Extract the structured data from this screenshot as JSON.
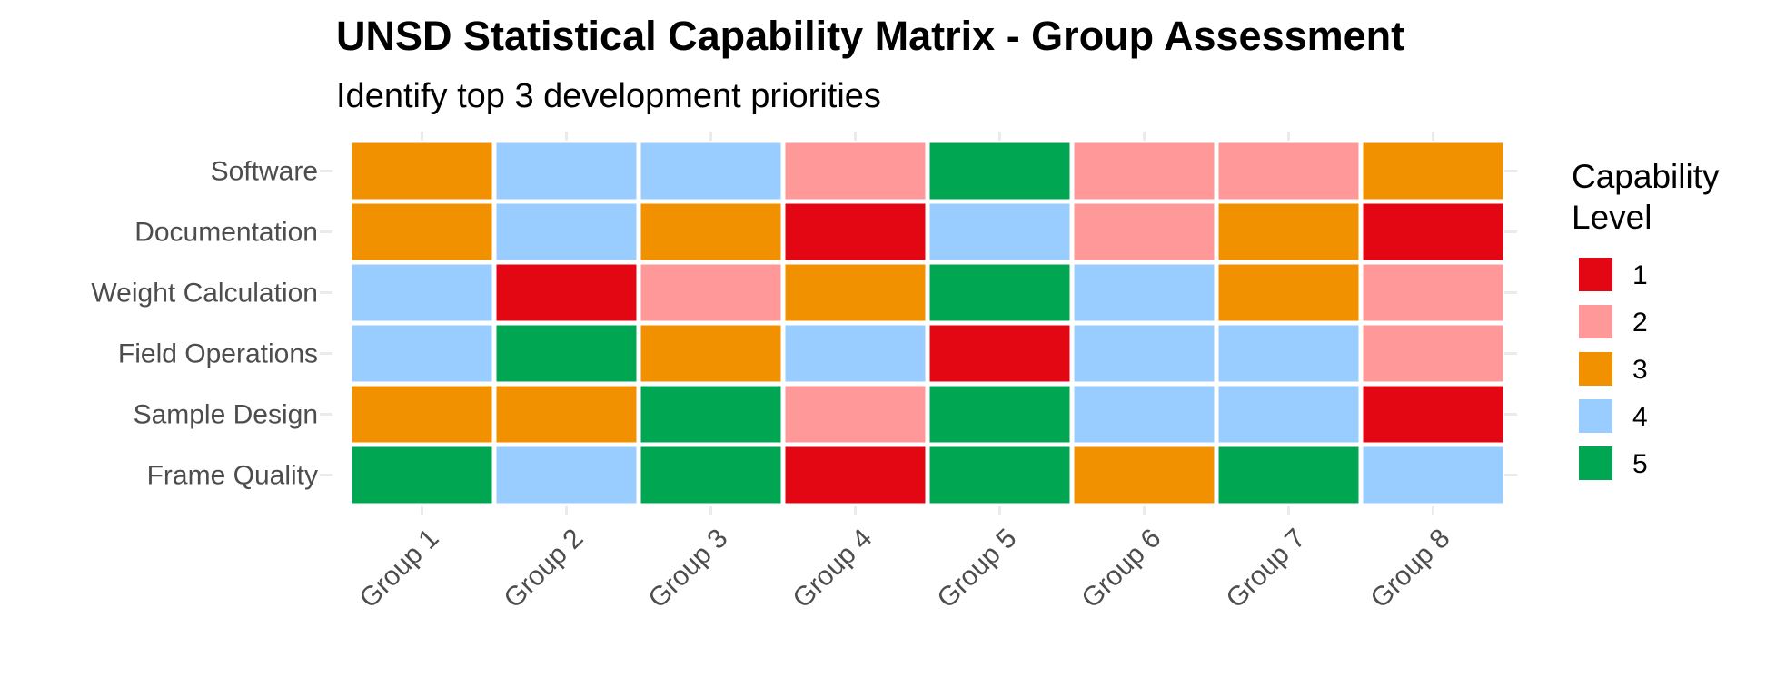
{
  "chart_data": {
    "type": "heatmap",
    "title": "UNSD Statistical Capability Matrix - Group Assessment",
    "subtitle": "Identify top 3 development priorities",
    "xlabel": "",
    "ylabel": "",
    "x_categories": [
      "Group 1",
      "Group 2",
      "Group 3",
      "Group 4",
      "Group 5",
      "Group 6",
      "Group 7",
      "Group 8"
    ],
    "y_categories": [
      "Software",
      "Documentation",
      "Weight Calculation",
      "Field Operations",
      "Sample Design",
      "Frame Quality"
    ],
    "values": [
      [
        3,
        4,
        4,
        2,
        5,
        2,
        2,
        3
      ],
      [
        3,
        4,
        3,
        1,
        4,
        2,
        3,
        1
      ],
      [
        4,
        1,
        2,
        3,
        5,
        4,
        3,
        2
      ],
      [
        4,
        5,
        3,
        4,
        1,
        4,
        4,
        2
      ],
      [
        3,
        3,
        5,
        2,
        5,
        4,
        4,
        1
      ],
      [
        5,
        4,
        5,
        1,
        5,
        3,
        5,
        4
      ]
    ],
    "legend": {
      "title_lines": [
        "Capability",
        "Level"
      ],
      "levels": [
        {
          "label": "1",
          "color": "#e30613"
        },
        {
          "label": "2",
          "color": "#ff9999"
        },
        {
          "label": "3",
          "color": "#f29100"
        },
        {
          "label": "4",
          "color": "#99ccff"
        },
        {
          "label": "5",
          "color": "#00a651"
        }
      ],
      "position": "right"
    },
    "grid": false
  }
}
